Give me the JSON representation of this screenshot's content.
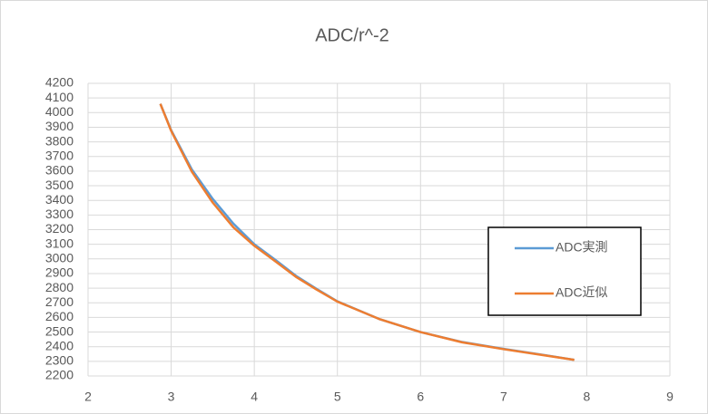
{
  "chart_data": {
    "type": "line",
    "title": "ADC/r^-2",
    "x": [
      2.87,
      3.0,
      3.25,
      3.5,
      3.75,
      4.0,
      4.25,
      4.5,
      4.75,
      5.0,
      5.5,
      6.0,
      6.5,
      7.0,
      7.5,
      7.85
    ],
    "series": [
      {
        "name": "ADC実測",
        "color": "#5b9bd5",
        "values": [
          4060,
          3880,
          3610,
          3410,
          3240,
          3100,
          2995,
          2885,
          2795,
          2710,
          2590,
          2500,
          2432,
          2385,
          2342,
          2310
        ]
      },
      {
        "name": "ADC近似",
        "color": "#ed7d31",
        "values": [
          4060,
          3875,
          3595,
          3385,
          3215,
          3090,
          2985,
          2878,
          2790,
          2708,
          2590,
          2500,
          2430,
          2383,
          2340,
          2310
        ]
      }
    ],
    "xlim": [
      2,
      9
    ],
    "xticks": [
      2,
      3,
      4,
      5,
      6,
      7,
      8,
      9
    ],
    "ylim": [
      2200,
      4200
    ],
    "yticks": [
      2200,
      2300,
      2400,
      2500,
      2600,
      2700,
      2800,
      2900,
      3000,
      3100,
      3200,
      3300,
      3400,
      3500,
      3600,
      3700,
      3800,
      3900,
      4000,
      4100,
      4200
    ],
    "grid": true,
    "legend": "right"
  }
}
